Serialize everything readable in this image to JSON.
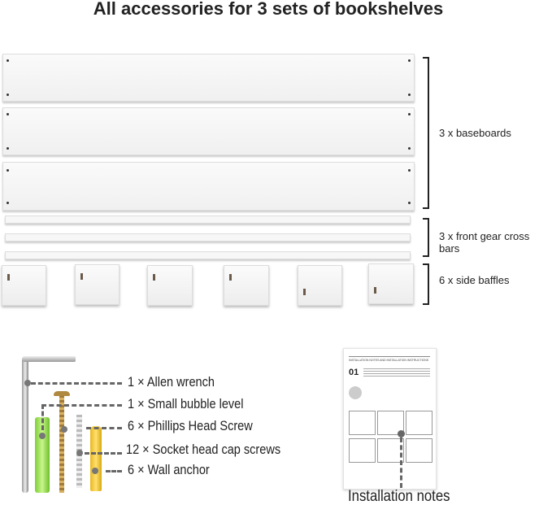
{
  "title": "All accessories for 3 sets of bookshelves",
  "parts": [
    {
      "label": "3 x baseboards"
    },
    {
      "label": "3 x front gear cross bars"
    },
    {
      "label": "6 x side baffles"
    }
  ],
  "hardware": [
    {
      "label": "1 × Allen wrench"
    },
    {
      "label": "1 × Small bubble level"
    },
    {
      "label": "6 × Phillips Head Screw"
    },
    {
      "label": "12 × Socket head cap screws"
    },
    {
      "label": "6 × Wall anchor"
    }
  ],
  "manual": {
    "heading": "INSTALLATION NOTES AND INSTALLATION INSTRUCTIONS",
    "step": "01",
    "caption": "Installation notes"
  }
}
